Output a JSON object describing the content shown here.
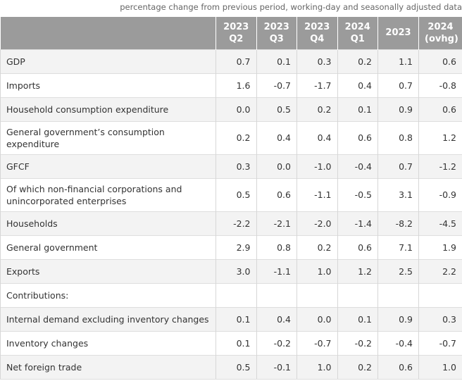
{
  "caption": "percentage change from previous period, working-day and seasonally adjusted data",
  "headers": [
    {
      "line1": "",
      "line2": ""
    },
    {
      "line1": "2023",
      "line2": "Q2"
    },
    {
      "line1": "2023",
      "line2": "Q3"
    },
    {
      "line1": "2023",
      "line2": "Q4"
    },
    {
      "line1": "2024",
      "line2": "Q1"
    },
    {
      "line1": "2023",
      "line2": ""
    },
    {
      "line1": "2024",
      "line2": "(ovhg)"
    }
  ],
  "rows": [
    {
      "label": "GDP",
      "values": [
        "0.7",
        "0.1",
        "0.3",
        "0.2",
        "1.1",
        "0.6"
      ]
    },
    {
      "label": "Imports",
      "values": [
        "1.6",
        "-0.7",
        "-1.7",
        "0.4",
        "0.7",
        "-0.8"
      ]
    },
    {
      "label": "Household consumption expenditure",
      "values": [
        "0.0",
        "0.5",
        "0.2",
        "0.1",
        "0.9",
        "0.6"
      ]
    },
    {
      "label": "General government’s consumption expenditure",
      "values": [
        "0.2",
        "0.4",
        "0.4",
        "0.6",
        "0.8",
        "1.2"
      ]
    },
    {
      "label": "GFCF",
      "values": [
        "0.3",
        "0.0",
        "-1.0",
        "-0.4",
        "0.7",
        "-1.2"
      ]
    },
    {
      "label": "Of which non-financial corporations and unincorporated enterprises",
      "values": [
        "0.5",
        "0.6",
        "-1.1",
        "-0.5",
        "3.1",
        "-0.9"
      ]
    },
    {
      "label": "Households",
      "values": [
        "-2.2",
        "-2.1",
        "-2.0",
        "-1.4",
        "-8.2",
        "-4.5"
      ]
    },
    {
      "label": "General government",
      "values": [
        "2.9",
        "0.8",
        "0.2",
        "0.6",
        "7.1",
        "1.9"
      ]
    },
    {
      "label": "Exports",
      "values": [
        "3.0",
        "-1.1",
        "1.0",
        "1.2",
        "2.5",
        "2.2"
      ]
    },
    {
      "label": "Contributions:",
      "values": [
        "",
        "",
        "",
        "",
        "",
        ""
      ]
    },
    {
      "label": "Internal demand excluding inventory changes",
      "values": [
        "0.1",
        "0.4",
        "0.0",
        "0.1",
        "0.9",
        "0.3"
      ]
    },
    {
      "label": "Inventory changes",
      "values": [
        "0.1",
        "-0.2",
        "-0.7",
        "-0.2",
        "-0.4",
        "-0.7"
      ]
    },
    {
      "label": "Net foreign trade",
      "values": [
        "0.5",
        "-0.1",
        "1.0",
        "0.2",
        "0.6",
        "1.0"
      ]
    }
  ]
}
